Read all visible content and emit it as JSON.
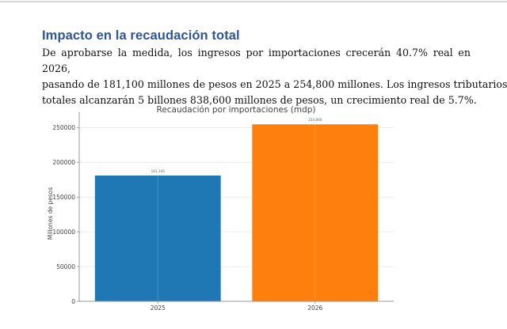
{
  "document": {
    "section_heading": "Impacto en la recaudación total",
    "paragraph_lines": [
      "De aprobarse la medida, los ingresos por importaciones crecerán 40.7% real en 2026,",
      "pasando de 181,100 millones de pesos en 2025 a 254,800 millones. Los ingresos tributarios",
      "totales alcanzarán 5 billones 838,600 millones de pesos, un crecimiento real de 5.7%."
    ]
  },
  "chart_data": {
    "type": "bar",
    "title": "Recaudación por importaciones (mdp)",
    "xlabel": "",
    "ylabel": "Millones de pesos",
    "categories": [
      "2025",
      "2026"
    ],
    "values": [
      181100,
      254800
    ],
    "data_labels": [
      "181,100",
      "254,800"
    ],
    "colors": [
      "#1f77b4",
      "#ff7f0e"
    ],
    "ylim": [
      0,
      267540
    ],
    "yticks": [
      0,
      50000,
      100000,
      150000,
      200000,
      250000
    ],
    "ytick_labels": [
      "0",
      "50000",
      "100000",
      "150000",
      "200000",
      "250000"
    ],
    "grid": true,
    "legend": "none"
  }
}
